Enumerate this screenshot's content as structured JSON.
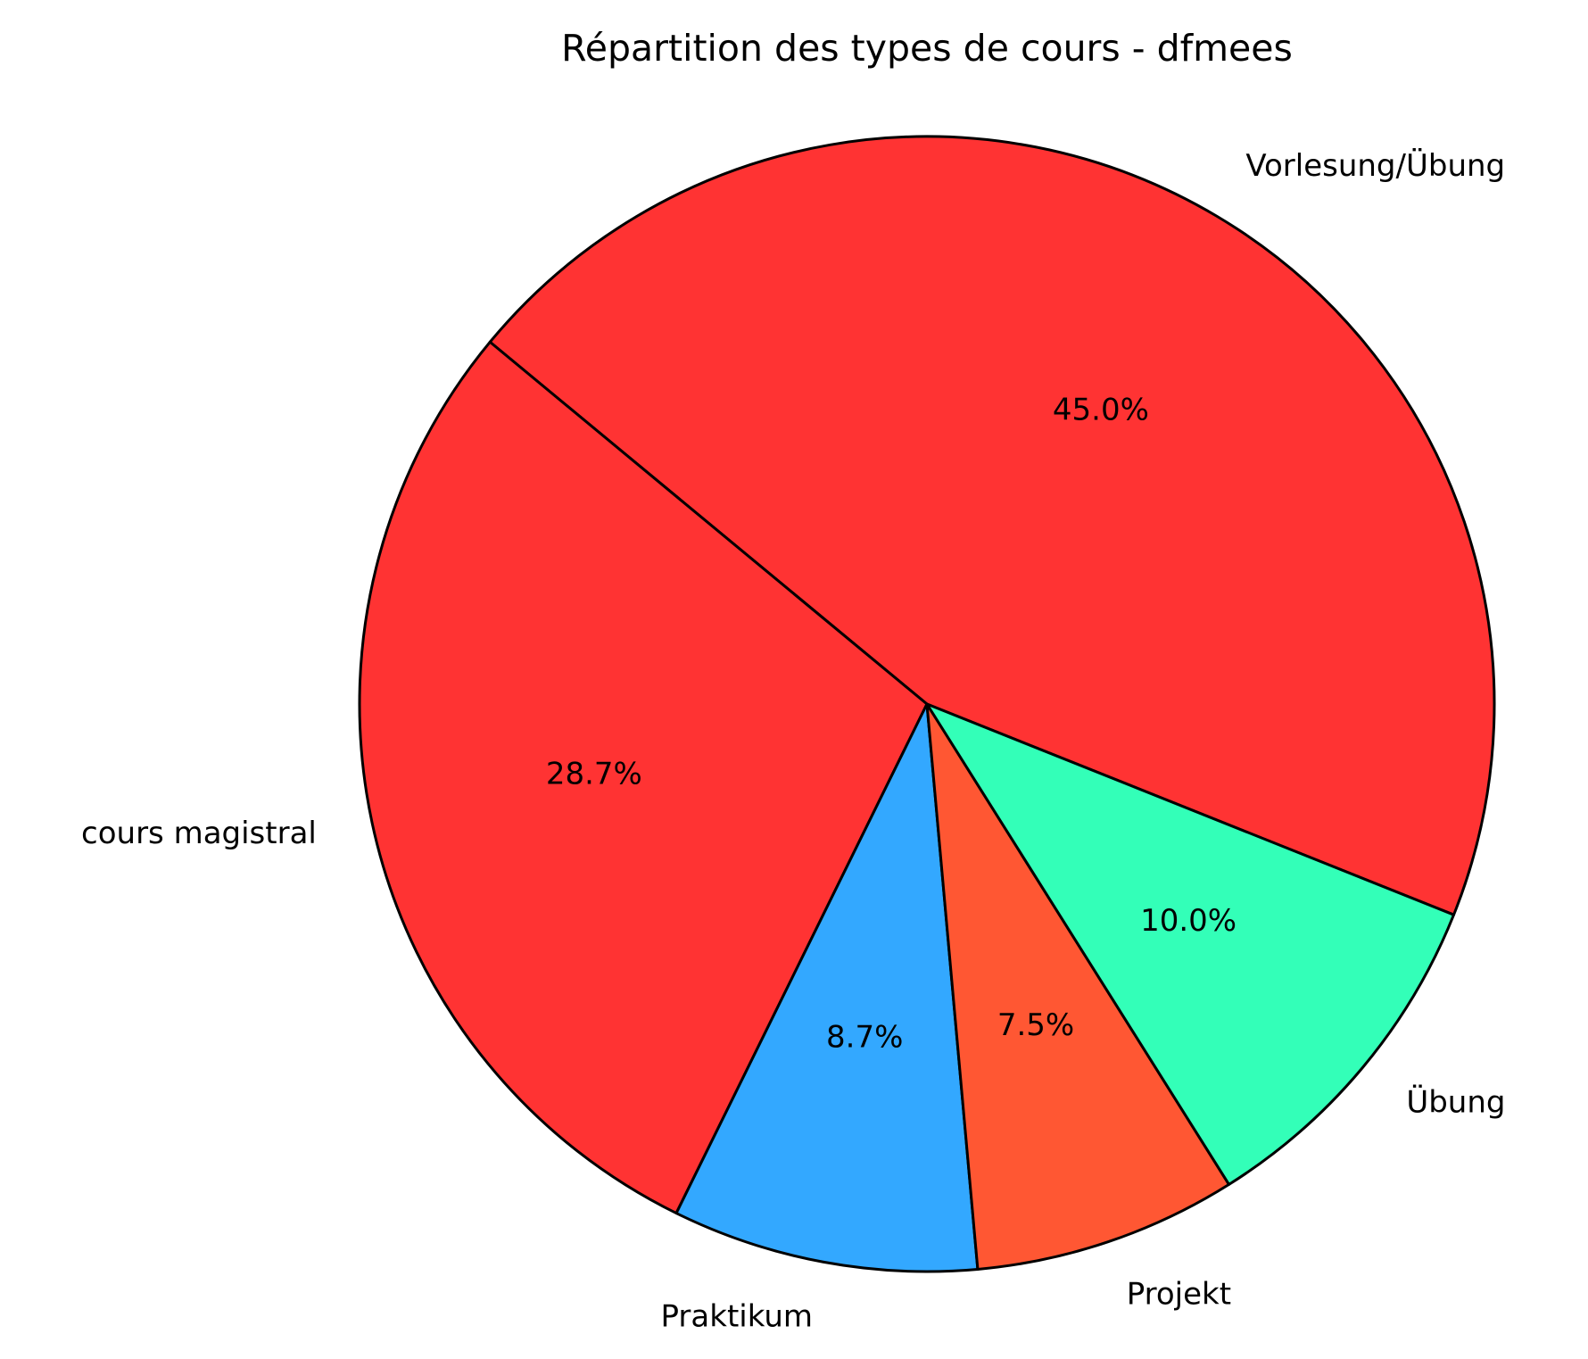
{
  "chart_data": {
    "type": "pie",
    "title": "Répartition des types de cours - dfmees",
    "categories": [
      "Vorlesung/Übung",
      "cours magistral",
      "Praktikum",
      "Projekt",
      "Übung"
    ],
    "values": [
      45.0,
      28.7,
      8.7,
      7.5,
      10.0
    ],
    "value_labels": [
      "45.0%",
      "28.7%",
      "8.7%",
      "7.5%",
      "10.0%"
    ],
    "colors": [
      "#ff3333",
      "#ff3333",
      "#33a8ff",
      "#ff5733",
      "#33ffb8"
    ],
    "startangle": -21.8
  }
}
